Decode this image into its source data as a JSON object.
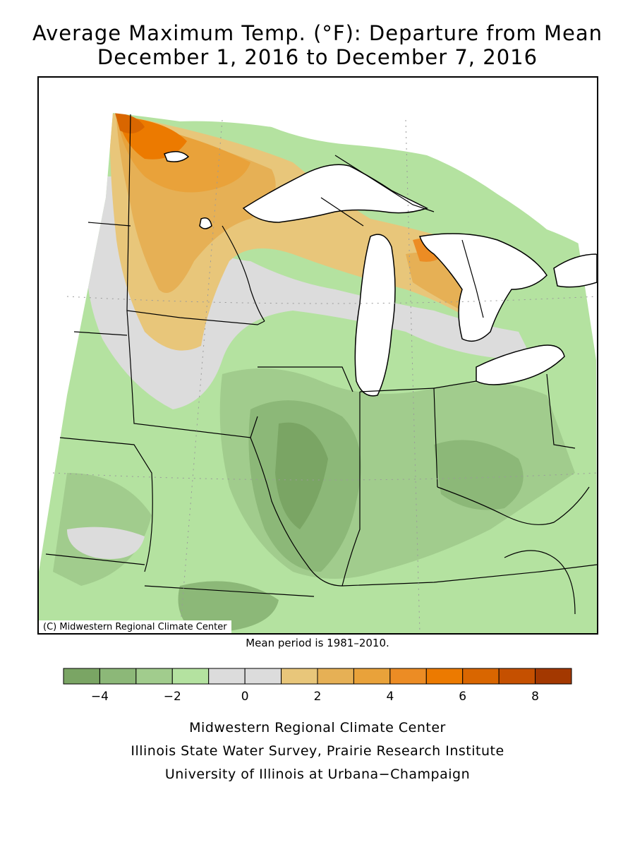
{
  "title_line1": "Average Maximum Temp. (°F): Departure from Mean",
  "title_line2": "December 1, 2016 to December 7, 2016",
  "copyright": "(C) Midwestern Regional Climate Center",
  "mean_period": "Mean period is 1981–2010.",
  "legend": {
    "bins": [
      {
        "from": -5,
        "to": -4,
        "color": "#7aa564"
      },
      {
        "from": -4,
        "to": -3,
        "color": "#8cb878"
      },
      {
        "from": -3,
        "to": -2,
        "color": "#a1cc8d"
      },
      {
        "from": -2,
        "to": -1,
        "color": "#b4e2a0"
      },
      {
        "from": -1,
        "to": 0,
        "color": "#dcdcdc"
      },
      {
        "from": 0,
        "to": 1,
        "color": "#dcdcdc"
      },
      {
        "from": 1,
        "to": 2,
        "color": "#e8c67a"
      },
      {
        "from": 2,
        "to": 3,
        "color": "#e6b055"
      },
      {
        "from": 3,
        "to": 4,
        "color": "#e9a23a"
      },
      {
        "from": 4,
        "to": 5,
        "color": "#ec8c24"
      },
      {
        "from": 5,
        "to": 6,
        "color": "#ec7a00"
      },
      {
        "from": 6,
        "to": 7,
        "color": "#d96600"
      },
      {
        "from": 7,
        "to": 8,
        "color": "#c55000"
      },
      {
        "from": 8,
        "to": 9,
        "color": "#a33800"
      }
    ],
    "tick_labels": [
      {
        "value": -4,
        "label": "−4"
      },
      {
        "value": -2,
        "label": "−2"
      },
      {
        "value": 0,
        "label": "0"
      },
      {
        "value": 2,
        "label": "2"
      },
      {
        "value": 4,
        "label": "4"
      },
      {
        "value": 6,
        "label": "6"
      },
      {
        "value": 8,
        "label": "8"
      }
    ]
  },
  "credits": [
    "Midwestern Regional Climate Center",
    "Illinois State Water Survey, Prairie Research Institute",
    "University of Illinois at Urbana−Champaign"
  ],
  "colors": {
    "lake": "#ffffff",
    "border": "#000000",
    "grid": "#9a9a9a"
  }
}
